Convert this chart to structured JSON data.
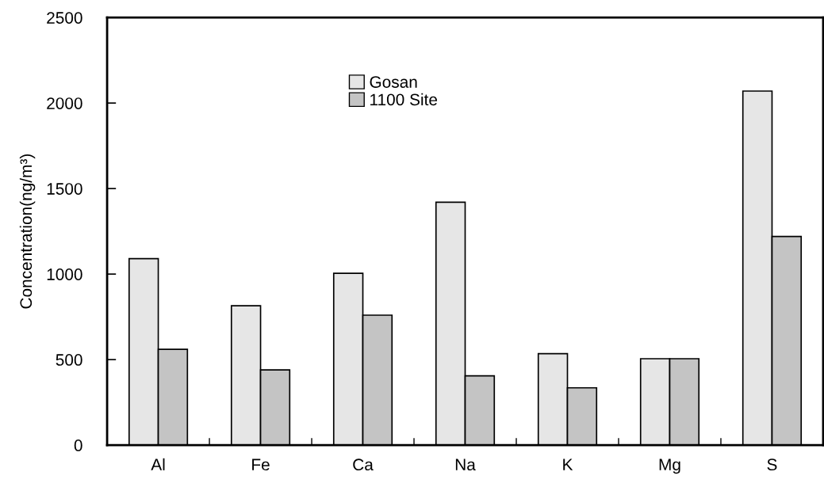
{
  "chart_data": {
    "type": "bar",
    "ylabel": "Concentration(ng/m³)",
    "categories": [
      "Al",
      "Fe",
      "Ca",
      "Na",
      "K",
      "Mg",
      "S"
    ],
    "series": [
      {
        "name": "Gosan",
        "color": "#e6e6e6",
        "values": [
          1090,
          815,
          1005,
          1420,
          535,
          505,
          2070
        ]
      },
      {
        "name": "1100 Site",
        "color": "#c4c4c4",
        "values": [
          560,
          440,
          760,
          405,
          335,
          505,
          1220
        ]
      }
    ],
    "ylim": [
      0,
      2500
    ],
    "yticks": [
      0,
      500,
      1000,
      1500,
      2000,
      2500
    ],
    "grid": false,
    "legend": "top"
  }
}
